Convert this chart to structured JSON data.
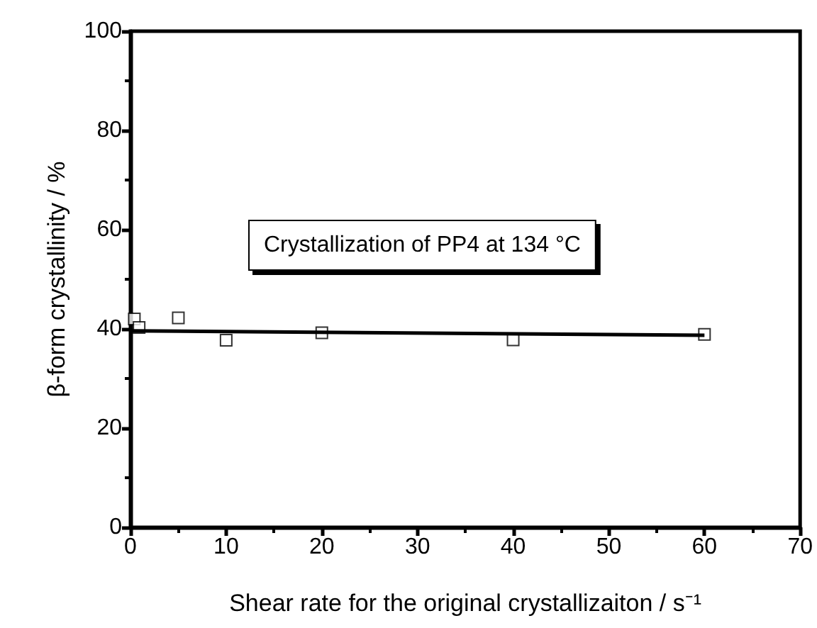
{
  "chart_data": {
    "type": "scatter",
    "xlabel": "Shear rate for the original crystallizaiton / s⁻¹",
    "ylabel": "β-form crystallinity / %",
    "annotations": [
      "Crystallization of PP4 at 134 °C"
    ],
    "series": [
      {
        "type": "scatter",
        "color": "#000000",
        "marker": "square",
        "x": [
          0.4,
          0.9,
          5,
          10,
          20,
          40,
          60
        ],
        "values": [
          42.0,
          40.3,
          42.2,
          37.7,
          39.2,
          37.8,
          38.9
        ]
      },
      {
        "type": "line",
        "color": "#000000",
        "marker": "none",
        "line_style": "solid",
        "x": [
          0,
          60
        ],
        "values": [
          39.6,
          38.7
        ]
      }
    ],
    "xlim": [
      0,
      70
    ],
    "xticks": [
      0,
      10,
      20,
      30,
      40,
      50,
      60,
      70
    ],
    "ylim": [
      0,
      100
    ],
    "yticks": [
      0,
      20,
      40,
      60,
      80,
      100
    ],
    "grid": false
  }
}
